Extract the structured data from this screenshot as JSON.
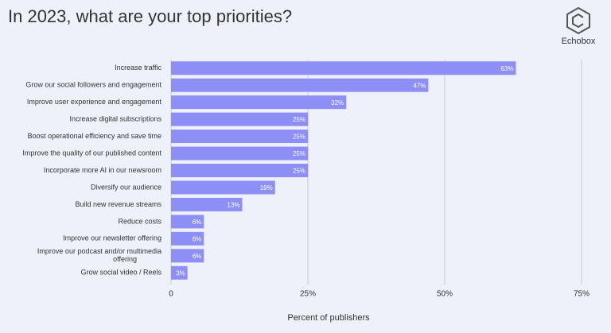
{
  "brand": "Echobox",
  "chart_data": {
    "type": "bar",
    "orientation": "horizontal",
    "title": "In 2023, what are your top priorities?",
    "x_label": "Percent of publishers",
    "categories": [
      "Increase traffic",
      "Grow our social followers and engagement",
      "Improve user experience and engagement",
      "Increase digital subscriptions",
      "Boost operational efficiency and save time",
      "Improve the quality of our published content",
      "Incorporate more AI in our newsroom",
      "Diversify our audience",
      "Build new revenue streams",
      "Reduce costs",
      "Improve our newsletter offering",
      "Improve our podcast and/or multimedia offering",
      "Grow social video / Reels"
    ],
    "values": [
      63,
      47,
      32,
      25,
      25,
      25,
      25,
      19,
      13,
      6,
      6,
      6,
      3
    ],
    "value_labels": [
      "63%",
      "47%",
      "32%",
      "25%",
      "25%",
      "25%",
      "25%",
      "19%",
      "13%",
      "6%",
      "6%",
      "6%",
      "3%"
    ],
    "color": "#8e8ff6",
    "xlim": [
      0,
      75
    ],
    "xticks": [
      0,
      {
        "value": 25,
        "label": "25%"
      },
      {
        "value": 50,
        "label": "50%"
      },
      {
        "value": 75,
        "label": "75%"
      }
    ],
    "grid": true
  }
}
